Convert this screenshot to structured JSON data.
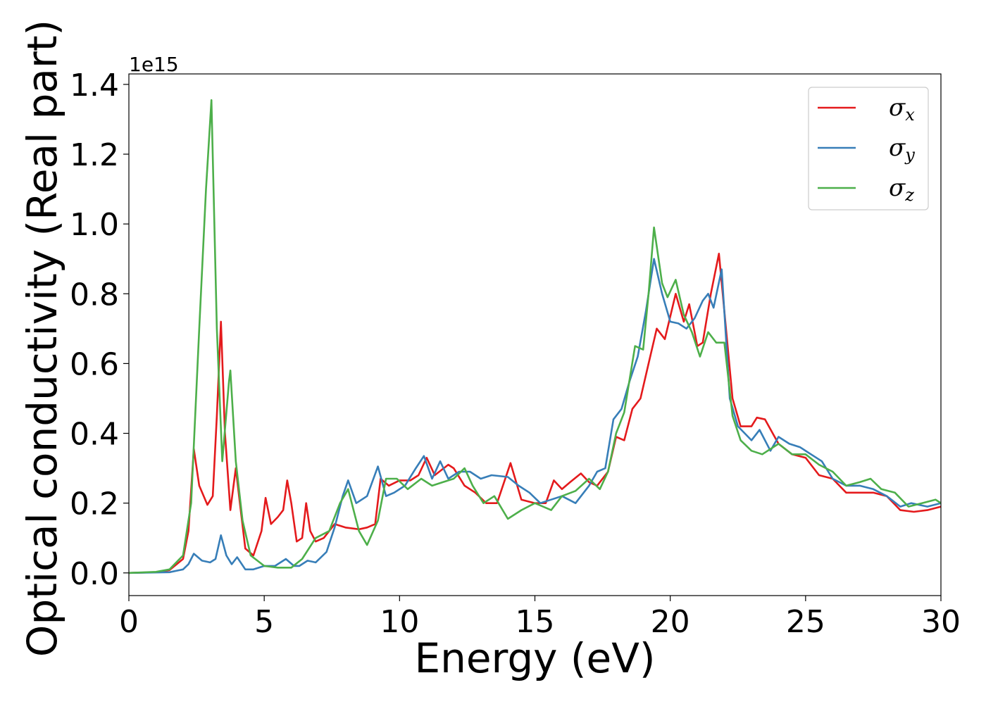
{
  "chart_data": {
    "type": "line",
    "title": "",
    "xlabel": "Energy (eV)",
    "ylabel": "Optical conductivity (Real part)",
    "y_offset_label": "1e15",
    "xlim": [
      0,
      30
    ],
    "ylim": [
      -0.065,
      1.43
    ],
    "x_ticks": [
      0,
      5,
      10,
      15,
      20,
      25,
      30
    ],
    "x_tick_labels": [
      "0",
      "5",
      "10",
      "15",
      "20",
      "25",
      "30"
    ],
    "y_ticks": [
      0.0,
      0.2,
      0.4,
      0.6,
      0.8,
      1.0,
      1.2,
      1.4
    ],
    "y_tick_labels": [
      "0.0",
      "0.2",
      "0.4",
      "0.6",
      "0.8",
      "1.0",
      "1.2",
      "1.4"
    ],
    "grid": false,
    "legend_position": "top-right",
    "series": [
      {
        "name": "σx",
        "legend_base": "σ",
        "legend_sub": "x",
        "color": "#e41a1c",
        "points": [
          [
            0,
            0
          ],
          [
            1,
            0.002
          ],
          [
            1.5,
            0.008
          ],
          [
            2,
            0.04
          ],
          [
            2.2,
            0.12
          ],
          [
            2.4,
            0.355
          ],
          [
            2.6,
            0.25
          ],
          [
            2.9,
            0.195
          ],
          [
            3.1,
            0.22
          ],
          [
            3.25,
            0.45
          ],
          [
            3.4,
            0.72
          ],
          [
            3.55,
            0.4
          ],
          [
            3.75,
            0.18
          ],
          [
            3.95,
            0.3
          ],
          [
            4.1,
            0.2
          ],
          [
            4.3,
            0.07
          ],
          [
            4.6,
            0.05
          ],
          [
            4.9,
            0.12
          ],
          [
            5.05,
            0.215
          ],
          [
            5.25,
            0.14
          ],
          [
            5.5,
            0.16
          ],
          [
            5.7,
            0.18
          ],
          [
            5.85,
            0.265
          ],
          [
            6.0,
            0.2
          ],
          [
            6.2,
            0.09
          ],
          [
            6.4,
            0.1
          ],
          [
            6.55,
            0.2
          ],
          [
            6.7,
            0.12
          ],
          [
            6.9,
            0.09
          ],
          [
            7.2,
            0.1
          ],
          [
            7.6,
            0.14
          ],
          [
            8.0,
            0.13
          ],
          [
            8.5,
            0.125
          ],
          [
            8.8,
            0.13
          ],
          [
            9.1,
            0.14
          ],
          [
            9.3,
            0.27
          ],
          [
            9.6,
            0.25
          ],
          [
            10.0,
            0.265
          ],
          [
            10.4,
            0.265
          ],
          [
            10.7,
            0.28
          ],
          [
            11.0,
            0.33
          ],
          [
            11.3,
            0.28
          ],
          [
            11.8,
            0.31
          ],
          [
            12.0,
            0.3
          ],
          [
            12.4,
            0.25
          ],
          [
            12.8,
            0.23
          ],
          [
            13.2,
            0.2
          ],
          [
            13.6,
            0.2
          ],
          [
            14.1,
            0.315
          ],
          [
            14.5,
            0.21
          ],
          [
            15.0,
            0.2
          ],
          [
            15.4,
            0.2
          ],
          [
            15.7,
            0.265
          ],
          [
            16.0,
            0.24
          ],
          [
            16.3,
            0.26
          ],
          [
            16.7,
            0.285
          ],
          [
            17.0,
            0.26
          ],
          [
            17.3,
            0.25
          ],
          [
            17.7,
            0.29
          ],
          [
            18.0,
            0.39
          ],
          [
            18.3,
            0.38
          ],
          [
            18.6,
            0.47
          ],
          [
            18.9,
            0.5
          ],
          [
            19.2,
            0.6
          ],
          [
            19.5,
            0.7
          ],
          [
            19.8,
            0.67
          ],
          [
            20.2,
            0.8
          ],
          [
            20.5,
            0.72
          ],
          [
            20.7,
            0.77
          ],
          [
            21.0,
            0.65
          ],
          [
            21.2,
            0.66
          ],
          [
            21.5,
            0.8
          ],
          [
            21.8,
            0.915
          ],
          [
            22.0,
            0.75
          ],
          [
            22.3,
            0.5
          ],
          [
            22.6,
            0.42
          ],
          [
            23.0,
            0.42
          ],
          [
            23.2,
            0.445
          ],
          [
            23.5,
            0.44
          ],
          [
            24.0,
            0.37
          ],
          [
            24.5,
            0.34
          ],
          [
            25.0,
            0.33
          ],
          [
            25.5,
            0.28
          ],
          [
            26.0,
            0.27
          ],
          [
            26.5,
            0.23
          ],
          [
            27.0,
            0.23
          ],
          [
            27.5,
            0.23
          ],
          [
            28.0,
            0.22
          ],
          [
            28.5,
            0.18
          ],
          [
            29.0,
            0.175
          ],
          [
            29.5,
            0.18
          ],
          [
            30.0,
            0.19
          ]
        ]
      },
      {
        "name": "σy",
        "legend_base": "σ",
        "legend_sub": "y",
        "color": "#377eb8",
        "points": [
          [
            0,
            0
          ],
          [
            1.5,
            0.002
          ],
          [
            2,
            0.01
          ],
          [
            2.2,
            0.025
          ],
          [
            2.4,
            0.055
          ],
          [
            2.7,
            0.035
          ],
          [
            3.0,
            0.03
          ],
          [
            3.2,
            0.04
          ],
          [
            3.4,
            0.108
          ],
          [
            3.6,
            0.05
          ],
          [
            3.8,
            0.025
          ],
          [
            4.0,
            0.045
          ],
          [
            4.3,
            0.01
          ],
          [
            4.6,
            0.01
          ],
          [
            5.0,
            0.02
          ],
          [
            5.4,
            0.02
          ],
          [
            5.8,
            0.04
          ],
          [
            6.1,
            0.02
          ],
          [
            6.3,
            0.02
          ],
          [
            6.6,
            0.035
          ],
          [
            6.9,
            0.03
          ],
          [
            7.3,
            0.06
          ],
          [
            7.6,
            0.13
          ],
          [
            7.9,
            0.22
          ],
          [
            8.1,
            0.265
          ],
          [
            8.4,
            0.2
          ],
          [
            8.8,
            0.22
          ],
          [
            9.2,
            0.305
          ],
          [
            9.5,
            0.22
          ],
          [
            9.8,
            0.23
          ],
          [
            10.2,
            0.25
          ],
          [
            10.6,
            0.3
          ],
          [
            10.9,
            0.335
          ],
          [
            11.2,
            0.27
          ],
          [
            11.5,
            0.32
          ],
          [
            11.8,
            0.27
          ],
          [
            12.2,
            0.29
          ],
          [
            12.6,
            0.29
          ],
          [
            13.0,
            0.27
          ],
          [
            13.4,
            0.28
          ],
          [
            14.0,
            0.275
          ],
          [
            14.4,
            0.25
          ],
          [
            14.8,
            0.23
          ],
          [
            15.2,
            0.2
          ],
          [
            15.6,
            0.21
          ],
          [
            16.0,
            0.22
          ],
          [
            16.5,
            0.2
          ],
          [
            17.0,
            0.25
          ],
          [
            17.3,
            0.29
          ],
          [
            17.6,
            0.3
          ],
          [
            17.9,
            0.44
          ],
          [
            18.2,
            0.47
          ],
          [
            18.5,
            0.55
          ],
          [
            18.8,
            0.62
          ],
          [
            19.1,
            0.75
          ],
          [
            19.4,
            0.9
          ],
          [
            19.7,
            0.8
          ],
          [
            20.0,
            0.72
          ],
          [
            20.3,
            0.715
          ],
          [
            20.6,
            0.7
          ],
          [
            20.9,
            0.73
          ],
          [
            21.2,
            0.78
          ],
          [
            21.4,
            0.8
          ],
          [
            21.6,
            0.76
          ],
          [
            21.9,
            0.87
          ],
          [
            22.2,
            0.5
          ],
          [
            22.5,
            0.42
          ],
          [
            23.0,
            0.38
          ],
          [
            23.3,
            0.41
          ],
          [
            23.7,
            0.35
          ],
          [
            24.0,
            0.39
          ],
          [
            24.4,
            0.37
          ],
          [
            24.8,
            0.36
          ],
          [
            25.2,
            0.34
          ],
          [
            25.6,
            0.32
          ],
          [
            26.0,
            0.27
          ],
          [
            26.5,
            0.25
          ],
          [
            27.0,
            0.25
          ],
          [
            27.5,
            0.24
          ],
          [
            28.0,
            0.22
          ],
          [
            28.5,
            0.19
          ],
          [
            28.9,
            0.2
          ],
          [
            29.5,
            0.19
          ],
          [
            30.0,
            0.2
          ]
        ]
      },
      {
        "name": "σz",
        "legend_base": "σ",
        "legend_sub": "z",
        "color": "#4daf4a",
        "points": [
          [
            0,
            0
          ],
          [
            1.0,
            0.003
          ],
          [
            1.5,
            0.01
          ],
          [
            2.0,
            0.05
          ],
          [
            2.3,
            0.2
          ],
          [
            2.6,
            0.7
          ],
          [
            2.85,
            1.1
          ],
          [
            3.05,
            1.355
          ],
          [
            3.25,
            0.7
          ],
          [
            3.45,
            0.32
          ],
          [
            3.7,
            0.55
          ],
          [
            3.75,
            0.58
          ],
          [
            3.95,
            0.32
          ],
          [
            4.2,
            0.15
          ],
          [
            4.5,
            0.05
          ],
          [
            5.0,
            0.02
          ],
          [
            5.5,
            0.015
          ],
          [
            6.0,
            0.015
          ],
          [
            6.4,
            0.04
          ],
          [
            6.9,
            0.1
          ],
          [
            7.4,
            0.12
          ],
          [
            7.8,
            0.2
          ],
          [
            8.1,
            0.24
          ],
          [
            8.5,
            0.12
          ],
          [
            8.8,
            0.08
          ],
          [
            9.2,
            0.15
          ],
          [
            9.5,
            0.27
          ],
          [
            9.9,
            0.27
          ],
          [
            10.3,
            0.24
          ],
          [
            10.8,
            0.27
          ],
          [
            11.2,
            0.25
          ],
          [
            11.6,
            0.26
          ],
          [
            12.0,
            0.27
          ],
          [
            12.4,
            0.3
          ],
          [
            12.7,
            0.25
          ],
          [
            13.1,
            0.2
          ],
          [
            13.5,
            0.22
          ],
          [
            14.0,
            0.155
          ],
          [
            14.5,
            0.18
          ],
          [
            15.0,
            0.2
          ],
          [
            15.6,
            0.18
          ],
          [
            16.0,
            0.22
          ],
          [
            16.5,
            0.235
          ],
          [
            17.0,
            0.27
          ],
          [
            17.4,
            0.24
          ],
          [
            17.7,
            0.29
          ],
          [
            18.0,
            0.4
          ],
          [
            18.3,
            0.46
          ],
          [
            18.7,
            0.65
          ],
          [
            19.0,
            0.64
          ],
          [
            19.2,
            0.8
          ],
          [
            19.4,
            0.99
          ],
          [
            19.7,
            0.83
          ],
          [
            19.9,
            0.79
          ],
          [
            20.2,
            0.84
          ],
          [
            20.5,
            0.74
          ],
          [
            20.8,
            0.69
          ],
          [
            21.1,
            0.62
          ],
          [
            21.4,
            0.69
          ],
          [
            21.7,
            0.66
          ],
          [
            22.0,
            0.66
          ],
          [
            22.3,
            0.45
          ],
          [
            22.6,
            0.38
          ],
          [
            23.0,
            0.35
          ],
          [
            23.4,
            0.34
          ],
          [
            24.0,
            0.37
          ],
          [
            24.5,
            0.34
          ],
          [
            25.0,
            0.34
          ],
          [
            25.5,
            0.31
          ],
          [
            26.0,
            0.29
          ],
          [
            26.5,
            0.25
          ],
          [
            27.0,
            0.26
          ],
          [
            27.4,
            0.27
          ],
          [
            27.8,
            0.24
          ],
          [
            28.3,
            0.23
          ],
          [
            28.8,
            0.19
          ],
          [
            29.3,
            0.2
          ],
          [
            29.8,
            0.21
          ],
          [
            30.0,
            0.2
          ]
        ]
      }
    ]
  }
}
